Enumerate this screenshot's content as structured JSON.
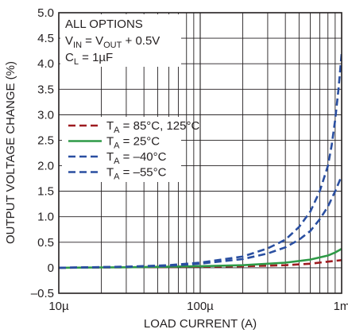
{
  "chart_data": {
    "type": "line",
    "title": "",
    "xlabel": "LOAD CURRENT (A)",
    "ylabel": "OUTPUT VOLTAGE CHANGE (%)",
    "xscale": "log",
    "xlim": [
      1e-05,
      0.001
    ],
    "ylim": [
      -0.5,
      5.0
    ],
    "x_tick_values": [
      1e-05,
      0.0001,
      0.001
    ],
    "x_tick_labels": [
      "10µ",
      "100µ",
      "1m"
    ],
    "y_ticks": [
      "5.0",
      "4.5",
      "4.0",
      "3.5",
      "3.0",
      "2.5",
      "2.0",
      "1.5",
      "1.0",
      "0.5",
      "0",
      "–0.5"
    ],
    "y_tick_values": [
      5.0,
      4.5,
      4.0,
      3.5,
      3.0,
      2.5,
      2.0,
      1.5,
      1.0,
      0.5,
      0,
      -0.5
    ],
    "grid": true,
    "annotations": {
      "line1": "ALL OPTIONS",
      "line2_main": "V",
      "line2_sub1": "IN",
      "line2_mid": " = V",
      "line2_sub2": "OUT",
      "line2_tail": " + 0.5V",
      "line3_main": "C",
      "line3_sub": "L",
      "line3_tail": " = 1µF"
    },
    "legend_position": "middle-left",
    "series": [
      {
        "name_main": "T",
        "name_sub": "A",
        "name_tail": " = 85°C, 125°C",
        "color": "#9e1b20",
        "dash": "dashed",
        "points": [
          [
            1e-05,
            0
          ],
          [
            3e-05,
            0.01
          ],
          [
            0.0001,
            0.02
          ],
          [
            0.0002,
            0.03
          ],
          [
            0.0004,
            0.05
          ],
          [
            0.0006,
            0.08
          ],
          [
            0.0008,
            0.12
          ],
          [
            0.001,
            0.15
          ]
        ]
      },
      {
        "name_main": "T",
        "name_sub": "A",
        "name_tail": " = 25°C",
        "color": "#2e9a47",
        "dash": "solid",
        "points": [
          [
            1e-05,
            0
          ],
          [
            3e-05,
            0.01
          ],
          [
            0.0001,
            0.03
          ],
          [
            0.0002,
            0.05
          ],
          [
            0.0004,
            0.1
          ],
          [
            0.0006,
            0.16
          ],
          [
            0.0008,
            0.24
          ],
          [
            0.0009,
            0.3
          ],
          [
            0.001,
            0.37
          ]
        ]
      },
      {
        "name_main": "T",
        "name_sub": "A",
        "name_tail": " = –40°C",
        "color": "#2a4fa1",
        "dash": "dashed",
        "points": [
          [
            1e-05,
            0
          ],
          [
            3e-05,
            0.02
          ],
          [
            6e-05,
            0.04
          ],
          [
            0.0001,
            0.08
          ],
          [
            0.0002,
            0.17
          ],
          [
            0.0003,
            0.28
          ],
          [
            0.0004,
            0.4
          ],
          [
            0.0005,
            0.55
          ],
          [
            0.0006,
            0.72
          ],
          [
            0.0007,
            0.95
          ],
          [
            0.0008,
            1.2
          ],
          [
            0.0009,
            1.5
          ],
          [
            0.001,
            1.8
          ]
        ]
      },
      {
        "name_main": "T",
        "name_sub": "A",
        "name_tail": " = –55°C",
        "color": "#2a4fa1",
        "dash": "dashed",
        "points": [
          [
            1e-05,
            0
          ],
          [
            3e-05,
            0.02
          ],
          [
            6e-05,
            0.05
          ],
          [
            0.0001,
            0.1
          ],
          [
            0.0002,
            0.22
          ],
          [
            0.0003,
            0.38
          ],
          [
            0.0004,
            0.55
          ],
          [
            0.0005,
            0.8
          ],
          [
            0.0006,
            1.1
          ],
          [
            0.0007,
            1.5
          ],
          [
            0.0008,
            2.0
          ],
          [
            0.00085,
            2.4
          ],
          [
            0.0009,
            2.9
          ],
          [
            0.00095,
            3.5
          ],
          [
            0.001,
            4.2
          ]
        ]
      }
    ]
  }
}
